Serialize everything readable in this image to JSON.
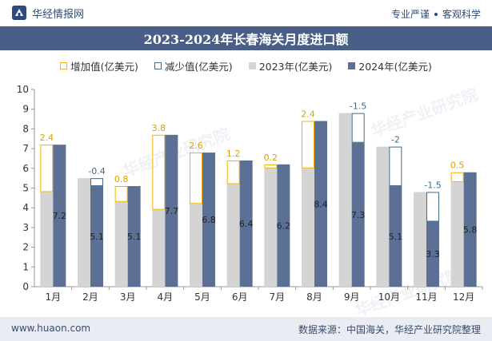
{
  "header": {
    "brand": "华经情报网",
    "slogan_left": "专业严谨",
    "slogan_right": "客观科学"
  },
  "title": "2023-2024年长春海关月度进口额",
  "legend": {
    "increase": "增加值(亿美元)",
    "decrease": "减少值(亿美元)",
    "y2023": "2023年(亿美元)",
    "y2024": "2024年(亿美元)"
  },
  "footer": {
    "website": "www.huaon.com",
    "source": "数据来源：中国海关，华经产业研究院整理"
  },
  "watermark": "华经产业研究院",
  "colors": {
    "bar_2023": "#d4d4d4",
    "bar_2024": "#5c7096",
    "increase": "#f0b400",
    "decrease": "#3e6d8e",
    "title_bg": "#4a5f87",
    "footer_bg": "#e9edf3"
  },
  "chart_data": {
    "type": "bar",
    "categories": [
      "1月",
      "2月",
      "3月",
      "4月",
      "5月",
      "6月",
      "7月",
      "8月",
      "9月",
      "10月",
      "11月",
      "12月"
    ],
    "series": [
      {
        "name": "2023年(亿美元)",
        "values": [
          4.8,
          5.5,
          4.3,
          3.9,
          4.2,
          5.2,
          6.0,
          6.0,
          8.8,
          7.1,
          4.8,
          5.3
        ]
      },
      {
        "name": "2024年(亿美元)",
        "values": [
          7.2,
          5.1,
          5.1,
          7.7,
          6.8,
          6.4,
          6.2,
          8.4,
          7.3,
          5.1,
          3.3,
          5.8
        ]
      }
    ],
    "change_labels": [
      "2.4",
      "-0.4",
      "0.8",
      "3.8",
      "2.6",
      "1.2",
      "0.2",
      "2.4",
      "-1.5",
      "-2",
      "-1.5",
      "0.5"
    ],
    "value_labels": [
      "7.2",
      "5.1",
      "5.1",
      "7.7",
      "6.8",
      "6.4",
      "6.2",
      "8.4",
      "7.3",
      "5.1",
      "3.3",
      "5.8"
    ],
    "ylim": [
      0,
      10
    ],
    "yticks": [
      "0",
      "1",
      "2",
      "3",
      "4",
      "5",
      "6",
      "7",
      "8",
      "9",
      "10"
    ],
    "grid": false,
    "legend_position": "top"
  }
}
